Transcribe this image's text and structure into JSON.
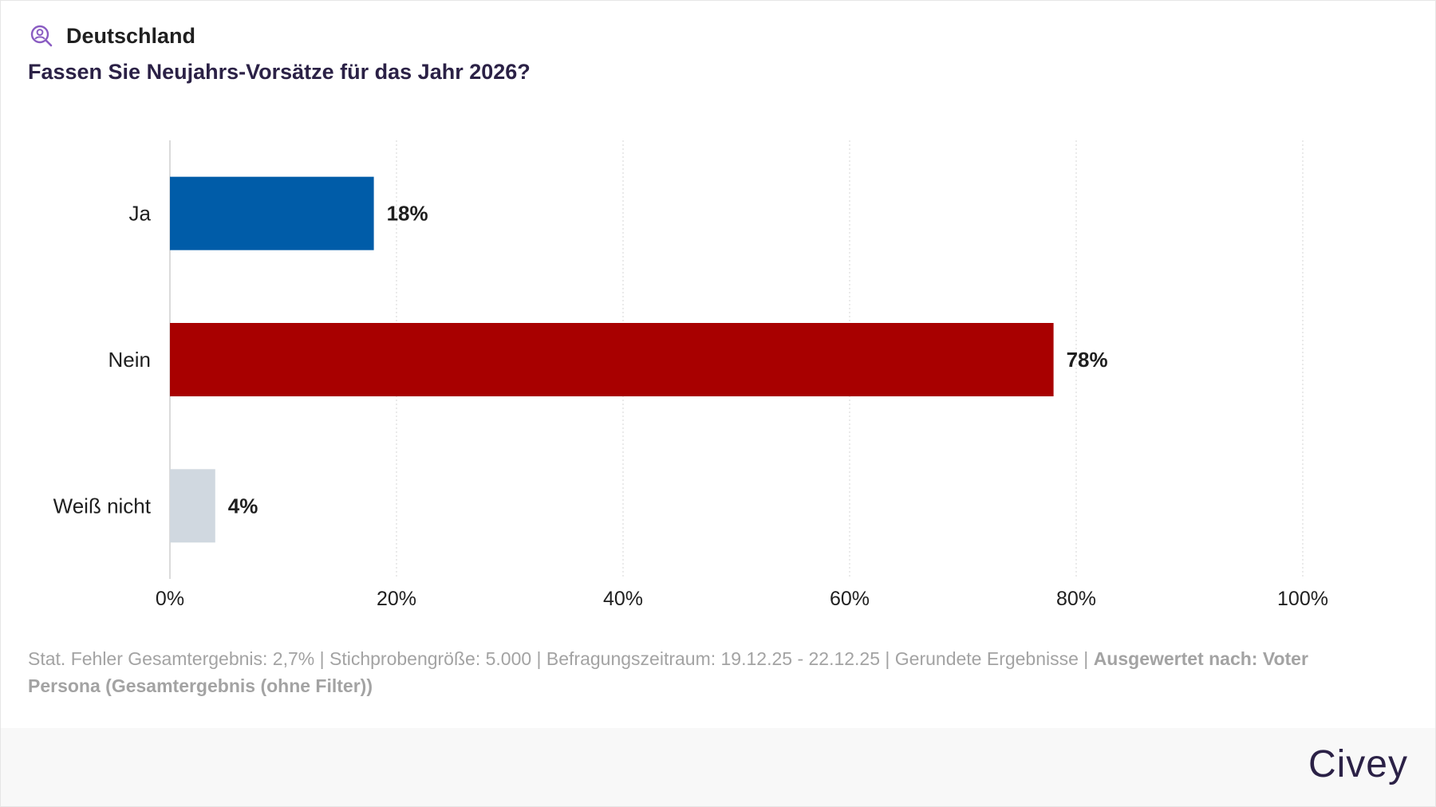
{
  "header": {
    "region": "Deutschland",
    "question": "Fassen Sie Neujahrs-Vorsätze für das Jahr 2026?",
    "icon": "user-search-icon"
  },
  "chart_data": {
    "type": "bar",
    "orientation": "horizontal",
    "categories": [
      "Ja",
      "Nein",
      "Weiß nicht"
    ],
    "values": [
      18,
      78,
      4
    ],
    "value_labels": [
      "18%",
      "78%",
      "4%"
    ],
    "colors": [
      "#005ca8",
      "#a80000",
      "#d0d8e0"
    ],
    "xlim": [
      0,
      100
    ],
    "xticks": [
      0,
      20,
      40,
      60,
      80,
      100
    ],
    "xtick_labels": [
      "0%",
      "20%",
      "40%",
      "60%",
      "80%",
      "100%"
    ],
    "grid": true,
    "title": "",
    "xlabel": "",
    "ylabel": ""
  },
  "footnote": {
    "text": "Stat. Fehler Gesamtergebnis: 2,7% | Stichprobengröße: 5.000 | Befragungszeitraum: 19.12.25 - 22.12.25 | Gerundete Ergebnisse | ",
    "bold": "Ausgewertet nach: Voter Persona (Gesamtergebnis (ohne Filter))"
  },
  "footer": {
    "logo": "Civey"
  }
}
